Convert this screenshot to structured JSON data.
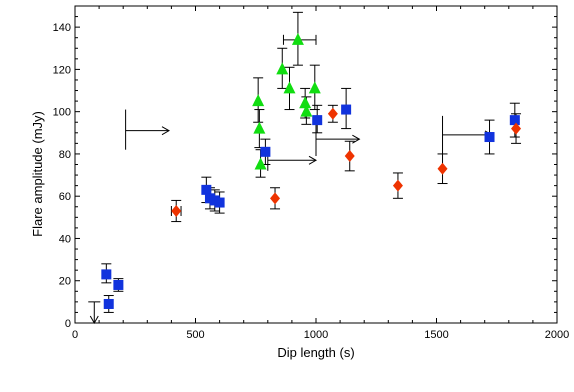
{
  "chart_data": {
    "type": "scatter",
    "title": "",
    "xlabel": "Dip length (s)",
    "ylabel": "Flare amplitude (mJy)",
    "xlim": [
      0,
      2000
    ],
    "ylim": [
      0,
      150
    ],
    "xticks": [
      "0",
      "500",
      "1000",
      "1500",
      "2000"
    ],
    "yticks": [
      "0",
      "20",
      "40",
      "60",
      "80",
      "100",
      "120",
      "140"
    ],
    "grid": false,
    "legend": "none",
    "series": [
      {
        "marker": "square",
        "color": "#1133dd",
        "points": [
          {
            "x": 130,
            "y": 23,
            "ylo": 19,
            "yhi": 28
          },
          {
            "x": 140,
            "y": 9,
            "ylo": 5,
            "yhi": 13
          },
          {
            "x": 180,
            "y": 18,
            "ylo": 15,
            "yhi": 21
          },
          {
            "x": 545,
            "y": 63,
            "ylo": 57,
            "yhi": 69
          },
          {
            "x": 560,
            "y": 59,
            "ylo": 54,
            "yhi": 64
          },
          {
            "x": 580,
            "y": 58,
            "ylo": 53,
            "yhi": 63
          },
          {
            "x": 600,
            "y": 57,
            "ylo": 52,
            "yhi": 62
          },
          {
            "x": 790,
            "y": 81,
            "ylo": 75,
            "yhi": 87
          },
          {
            "x": 1005,
            "y": 96,
            "ylo": 90,
            "yhi": 103
          },
          {
            "x": 1125,
            "y": 101,
            "ylo": 92,
            "yhi": 111
          },
          {
            "x": 1720,
            "y": 88,
            "ylo": 80,
            "yhi": 96
          },
          {
            "x": 1825,
            "y": 96,
            "ylo": 88,
            "yhi": 104
          }
        ]
      },
      {
        "marker": "triangle",
        "color": "#11dd11",
        "points": [
          {
            "x": 760,
            "y": 105,
            "ylo": 95,
            "yhi": 116
          },
          {
            "x": 765,
            "y": 92,
            "ylo": 83,
            "yhi": 101
          },
          {
            "x": 770,
            "y": 75,
            "ylo": 69,
            "yhi": 82
          },
          {
            "x": 860,
            "y": 120,
            "ylo": 111,
            "yhi": 130
          },
          {
            "x": 890,
            "y": 111,
            "ylo": 101,
            "yhi": 121
          },
          {
            "x": 925,
            "y": 134,
            "ylo": 122,
            "yhi": 147,
            "xlo": 865,
            "xhi": 1000
          },
          {
            "x": 955,
            "y": 104,
            "ylo": 97,
            "yhi": 111
          },
          {
            "x": 960,
            "y": 100,
            "ylo": 94,
            "yhi": 107
          },
          {
            "x": 995,
            "y": 111,
            "ylo": 101,
            "yhi": 122
          }
        ]
      },
      {
        "marker": "diamond",
        "color": "#ee3300",
        "points": [
          {
            "x": 420,
            "y": 53,
            "ylo": 48,
            "yhi": 58,
            "xlo": 400,
            "xhi": 440
          },
          {
            "x": 830,
            "y": 59,
            "ylo": 54,
            "yhi": 64
          },
          {
            "x": 1070,
            "y": 99,
            "ylo": 95,
            "yhi": 103
          },
          {
            "x": 1140,
            "y": 79,
            "ylo": 72,
            "yhi": 86
          },
          {
            "x": 1340,
            "y": 65,
            "ylo": 59,
            "yhi": 71
          },
          {
            "x": 1525,
            "y": 73,
            "ylo": 66,
            "yhi": 80
          },
          {
            "x": 1830,
            "y": 92,
            "ylo": 85,
            "yhi": 99
          }
        ]
      }
    ],
    "limits": [
      {
        "direction": "right",
        "x": 210,
        "y": 91,
        "ylo": 82,
        "yhi": 101,
        "x_end": 390
      },
      {
        "direction": "right",
        "x": 800,
        "y": 77,
        "ylo": 72,
        "yhi": 82,
        "x_end": 1000
      },
      {
        "direction": "right",
        "x": 1000,
        "y": 87,
        "ylo": 79,
        "yhi": 96,
        "x_end": 1180
      },
      {
        "direction": "right",
        "x": 1525,
        "y": 89,
        "ylo": 80,
        "yhi": 98,
        "x_end": 1730
      },
      {
        "direction": "down",
        "x": 80,
        "y": 10,
        "xlo": 55,
        "xhi": 105,
        "y_end": 0
      }
    ]
  }
}
